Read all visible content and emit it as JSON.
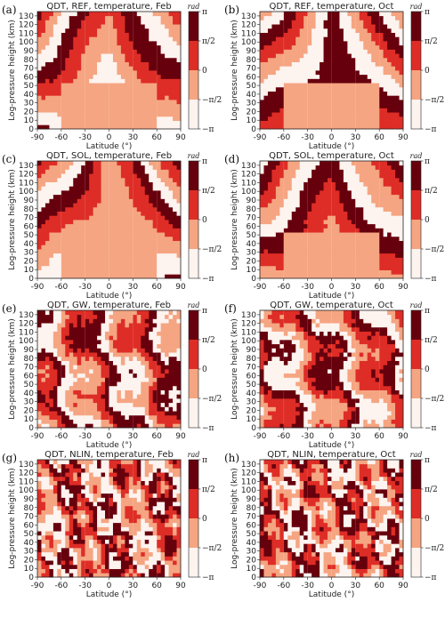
{
  "figure": {
    "colors": {
      "bin1": "#fdf3ef",
      "bin2": "#f5a582",
      "bin3": "#de2d26",
      "bin4": "#67000d"
    }
  },
  "colorbar": {
    "unit": "rad",
    "labels": [
      "π",
      "π/2",
      "0",
      "−π/2",
      "−π"
    ]
  },
  "axes": {
    "xlabel": "Latitude (°)",
    "ylabel": "Log-pressure height (km)",
    "xticks": [
      "-90",
      "-60",
      "-30",
      "0",
      "30",
      "60",
      "90"
    ],
    "yticks": [
      "0",
      "10",
      "20",
      "30",
      "40",
      "50",
      "60",
      "70",
      "80",
      "90",
      "100",
      "110",
      "120",
      "130"
    ]
  },
  "chart_data": [
    {
      "type": "heatmap",
      "letter": "(a)",
      "title": "QDT, REF, temperature, Feb",
      "xlim": [
        -90,
        90
      ],
      "ylim": [
        0,
        135
      ],
      "seed": 11,
      "scheme": "smooth",
      "zlim": [
        -3.1416,
        3.1416
      ]
    },
    {
      "type": "heatmap",
      "letter": "(b)",
      "title": "QDT, REF, temperature, Oct",
      "xlim": [
        -90,
        90
      ],
      "ylim": [
        0,
        135
      ],
      "seed": 23,
      "scheme": "smooth",
      "zlim": [
        -3.1416,
        3.1416
      ]
    },
    {
      "type": "heatmap",
      "letter": "(c)",
      "title": "QDT, SOL, temperature, Feb",
      "xlim": [
        -90,
        90
      ],
      "ylim": [
        0,
        135
      ],
      "seed": 37,
      "scheme": "smooth",
      "zlim": [
        -3.1416,
        3.1416
      ]
    },
    {
      "type": "heatmap",
      "letter": "(d)",
      "title": "QDT, SOL, temperature, Oct",
      "xlim": [
        -90,
        90
      ],
      "ylim": [
        0,
        135
      ],
      "seed": 41,
      "scheme": "smooth",
      "zlim": [
        -3.1416,
        3.1416
      ]
    },
    {
      "type": "heatmap",
      "letter": "(e)",
      "title": "QDT, GW, temperature, Feb",
      "xlim": [
        -90,
        90
      ],
      "ylim": [
        0,
        135
      ],
      "seed": 53,
      "scheme": "streaky",
      "zlim": [
        -3.1416,
        3.1416
      ]
    },
    {
      "type": "heatmap",
      "letter": "(f)",
      "title": "QDT, GW, temperature, Oct",
      "xlim": [
        -90,
        90
      ],
      "ylim": [
        0,
        135
      ],
      "seed": 67,
      "scheme": "streaky",
      "zlim": [
        -3.1416,
        3.1416
      ]
    },
    {
      "type": "heatmap",
      "letter": "(g)",
      "title": "QDT, NLIN, temperature, Feb",
      "xlim": [
        -90,
        90
      ],
      "ylim": [
        0,
        135
      ],
      "seed": 79,
      "scheme": "noisy",
      "zlim": [
        -3.1416,
        3.1416
      ]
    },
    {
      "type": "heatmap",
      "letter": "(h)",
      "title": "QDT, NLIN, temperature, Oct",
      "xlim": [
        -90,
        90
      ],
      "ylim": [
        0,
        135
      ],
      "seed": 97,
      "scheme": "noisy",
      "zlim": [
        -3.1416,
        3.1416
      ]
    }
  ]
}
